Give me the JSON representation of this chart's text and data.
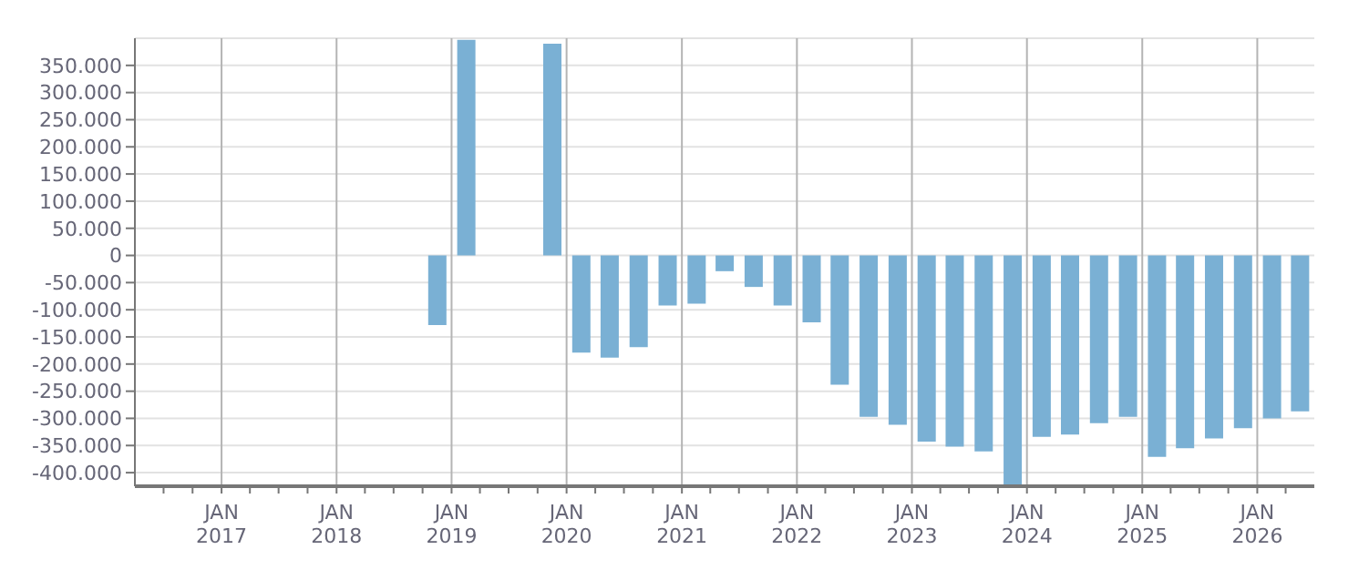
{
  "chart_data": {
    "type": "bar",
    "x": [
      "2018-11-15",
      "2019-02-15",
      "2019-11-15",
      "2020-02-15",
      "2020-05-15",
      "2020-08-15",
      "2020-11-15",
      "2021-02-15",
      "2021-05-15",
      "2021-08-15",
      "2021-11-15",
      "2022-02-15",
      "2022-05-15",
      "2022-08-15",
      "2022-11-15",
      "2023-02-15",
      "2023-05-15",
      "2023-08-15",
      "2023-11-15",
      "2024-02-15",
      "2024-05-15",
      "2024-08-15",
      "2024-11-15",
      "2025-02-15",
      "2025-05-15",
      "2025-08-15",
      "2025-11-15",
      "2026-02-15",
      "2026-05-15"
    ],
    "values": [
      -128000,
      397000,
      390000,
      -179000,
      -188000,
      -169000,
      -92000,
      -89000,
      -29000,
      -58000,
      -92000,
      -123000,
      -238000,
      -297000,
      -312000,
      -343000,
      -352000,
      -361000,
      -425000,
      -334000,
      -330000,
      -309000,
      -297000,
      -371000,
      -355000,
      -337000,
      -318000,
      -300000,
      -287000
    ],
    "color": "#7ab0d4",
    "xlim": [
      "2016-04-01",
      "2026-07-01"
    ],
    "xticks": [
      {
        "value": "2016-07-01",
        "label": null
      },
      {
        "value": "2016-10-01",
        "label": null
      },
      {
        "value": "2017-01-01",
        "label": "JAN\n2017"
      },
      {
        "value": "2017-04-01",
        "label": null
      },
      {
        "value": "2017-07-01",
        "label": null
      },
      {
        "value": "2017-10-01",
        "label": null
      },
      {
        "value": "2018-01-01",
        "label": "JAN\n2018"
      },
      {
        "value": "2018-04-01",
        "label": null
      },
      {
        "value": "2018-07-01",
        "label": null
      },
      {
        "value": "2018-10-01",
        "label": null
      },
      {
        "value": "2019-01-01",
        "label": "JAN\n2019"
      },
      {
        "value": "2019-04-01",
        "label": null
      },
      {
        "value": "2019-07-01",
        "label": null
      },
      {
        "value": "2019-10-01",
        "label": null
      },
      {
        "value": "2020-01-01",
        "label": "JAN\n2020"
      },
      {
        "value": "2020-04-01",
        "label": null
      },
      {
        "value": "2020-07-01",
        "label": null
      },
      {
        "value": "2020-10-01",
        "label": null
      },
      {
        "value": "2021-01-01",
        "label": "JAN\n2021"
      },
      {
        "value": "2021-04-01",
        "label": null
      },
      {
        "value": "2021-07-01",
        "label": null
      },
      {
        "value": "2021-10-01",
        "label": null
      },
      {
        "value": "2022-01-01",
        "label": "JAN\n2022"
      },
      {
        "value": "2022-04-01",
        "label": null
      },
      {
        "value": "2022-07-01",
        "label": null
      },
      {
        "value": "2022-10-01",
        "label": null
      },
      {
        "value": "2023-01-01",
        "label": "JAN\n2023"
      },
      {
        "value": "2023-04-01",
        "label": null
      },
      {
        "value": "2023-07-01",
        "label": null
      },
      {
        "value": "2023-10-01",
        "label": null
      },
      {
        "value": "2024-01-01",
        "label": "JAN\n2024"
      },
      {
        "value": "2024-04-01",
        "label": null
      },
      {
        "value": "2024-07-01",
        "label": null
      },
      {
        "value": "2024-10-01",
        "label": null
      },
      {
        "value": "2025-01-01",
        "label": "JAN\n2025"
      },
      {
        "value": "2025-04-01",
        "label": null
      },
      {
        "value": "2025-07-01",
        "label": null
      },
      {
        "value": "2025-10-01",
        "label": null
      },
      {
        "value": "2026-01-01",
        "label": "JAN\n2026"
      },
      {
        "value": "2026-04-01",
        "label": null
      }
    ],
    "ylim": [
      -425000,
      400000
    ],
    "yticks": [
      {
        "value": -400000,
        "label": "-400.000"
      },
      {
        "value": -350000,
        "label": "-350.000"
      },
      {
        "value": -300000,
        "label": "-300.000"
      },
      {
        "value": -250000,
        "label": "-250.000"
      },
      {
        "value": -200000,
        "label": "-200.000"
      },
      {
        "value": -150000,
        "label": "-150.000"
      },
      {
        "value": -100000,
        "label": "-100.000"
      },
      {
        "value": -50000,
        "label": "-50.000"
      },
      {
        "value": 0,
        "label": "0"
      },
      {
        "value": 50000,
        "label": "50.000"
      },
      {
        "value": 100000,
        "label": "100.000"
      },
      {
        "value": 150000,
        "label": "150.000"
      },
      {
        "value": 200000,
        "label": "200.000"
      },
      {
        "value": 250000,
        "label": "250.000"
      },
      {
        "value": 300000,
        "label": "300.000"
      },
      {
        "value": 350000,
        "label": "350.000"
      }
    ],
    "grid": true
  }
}
